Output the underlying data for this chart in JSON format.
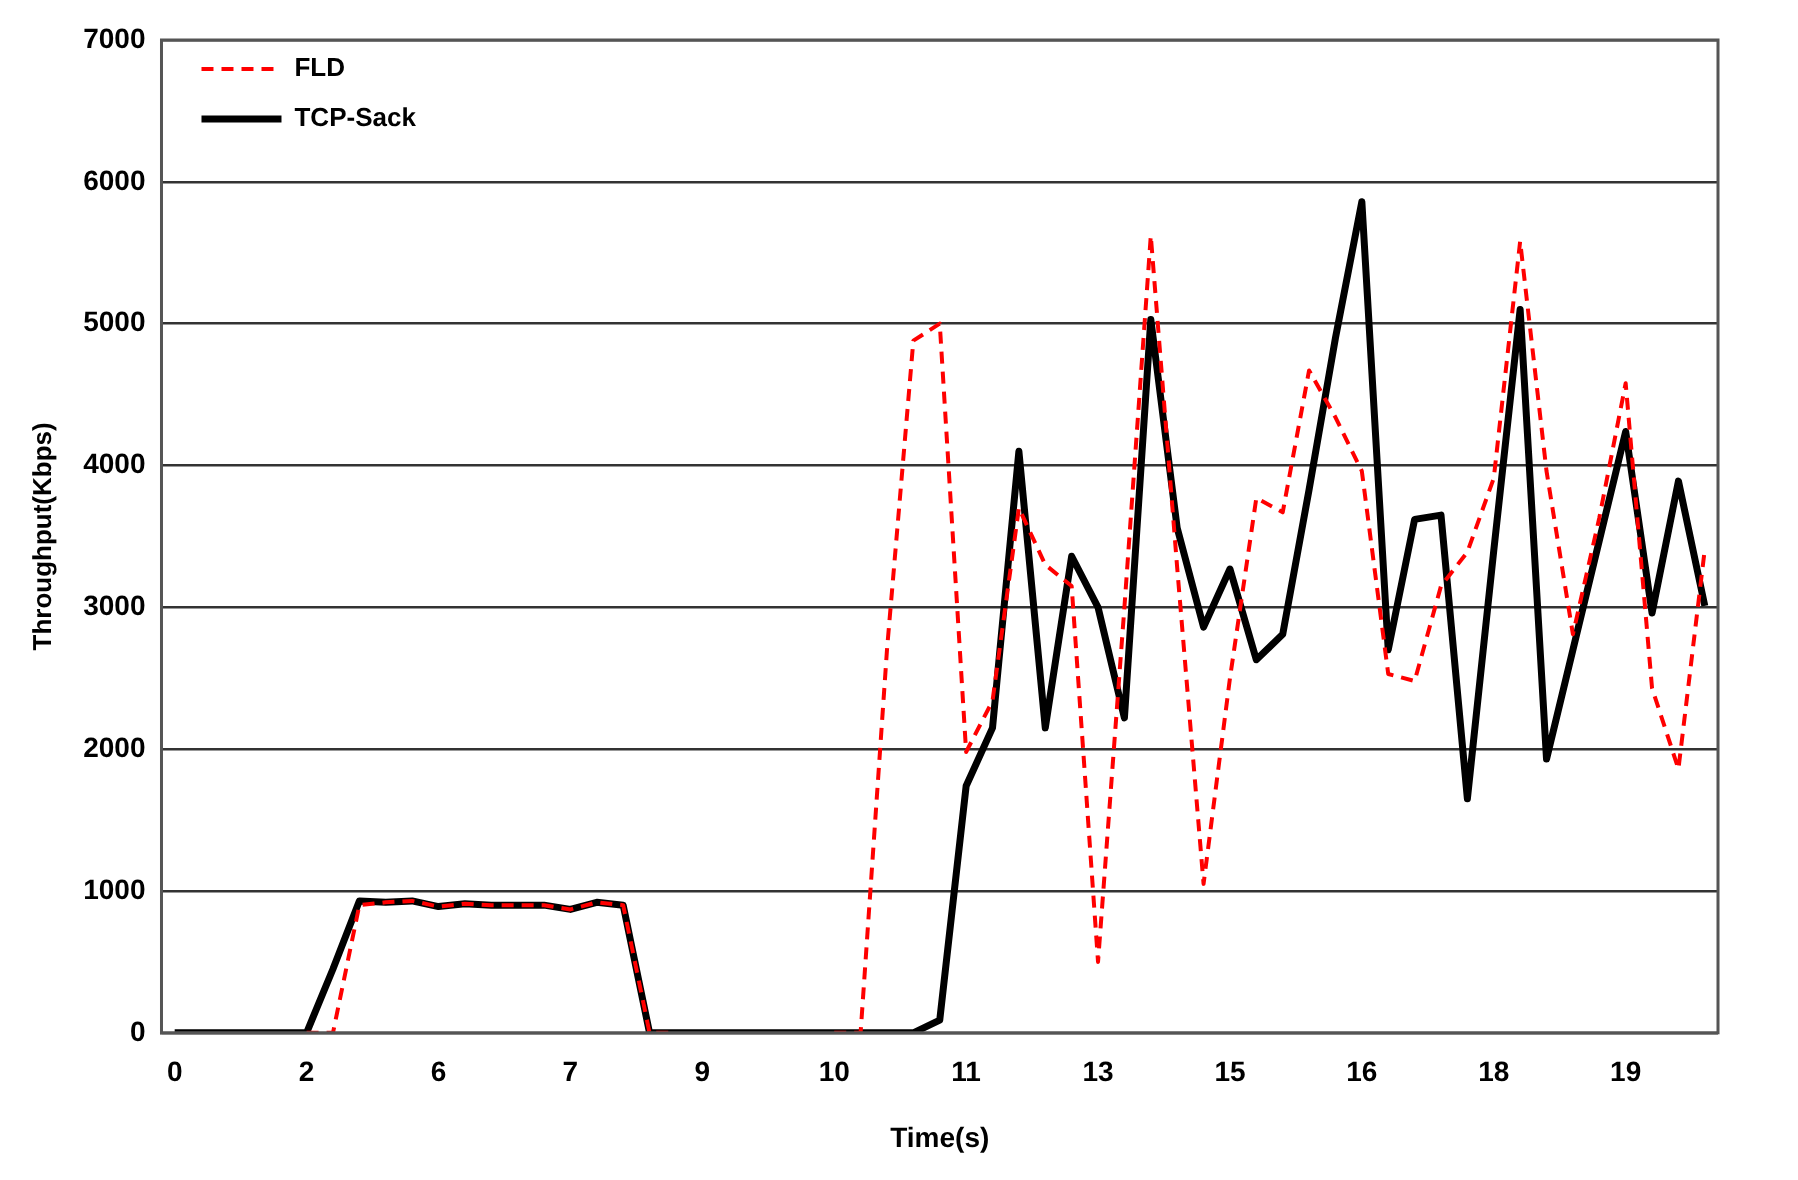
{
  "chart_data": {
    "type": "line",
    "xlabel": "Time(s)",
    "ylabel": "Throughput(Kbps)",
    "categories": [
      "0",
      null,
      null,
      null,
      null,
      "2",
      null,
      null,
      null,
      null,
      "6",
      null,
      null,
      null,
      null,
      "7",
      null,
      null,
      null,
      null,
      "9",
      null,
      null,
      null,
      null,
      "10",
      null,
      null,
      null,
      null,
      "11",
      null,
      null,
      null,
      null,
      "13",
      null,
      null,
      null,
      null,
      "15",
      null,
      null,
      null,
      null,
      "16",
      null,
      null,
      null,
      null,
      "18",
      null,
      null,
      null,
      null,
      "19",
      null,
      null,
      null
    ],
    "series": [
      {
        "name": "FLD",
        "color": "#ff0000",
        "line_style": "dashed",
        "values": [
          null,
          null,
          null,
          null,
          null,
          0,
          0,
          900,
          920,
          930,
          890,
          910,
          900,
          900,
          900,
          870,
          920,
          900,
          0,
          0,
          null,
          null,
          null,
          null,
          null,
          0,
          0,
          2700,
          4880,
          5000,
          1980,
          2340,
          3700,
          3300,
          3150,
          500,
          3000,
          5620,
          3280,
          1050,
          2500,
          3770,
          3670,
          4670,
          4340,
          3960,
          2530,
          2480,
          3150,
          3390,
          3910,
          5580,
          3960,
          2810,
          3630,
          4580,
          2430,
          1860,
          3410
        ]
      },
      {
        "name": "TCP-Sack",
        "color": "#000000",
        "line_style": "solid",
        "values": [
          0,
          0,
          0,
          0,
          0,
          0,
          450,
          930,
          920,
          930,
          890,
          910,
          900,
          900,
          900,
          870,
          920,
          900,
          0,
          0,
          0,
          0,
          0,
          0,
          0,
          0,
          0,
          0,
          0,
          90,
          1740,
          2150,
          4100,
          2150,
          3360,
          3000,
          2220,
          5030,
          3560,
          2860,
          3270,
          2630,
          2810,
          3830,
          4900,
          5860,
          2700,
          3620,
          3650,
          1650,
          3400,
          5100,
          1930,
          2700,
          3470,
          4240,
          2960,
          3890,
          3010
        ]
      }
    ],
    "ylim": [
      0,
      7000
    ],
    "yticks": [
      0,
      1000,
      2000,
      3000,
      4000,
      5000,
      6000,
      7000
    ],
    "grid": "y",
    "legend": "top left",
    "marker": "none"
  }
}
